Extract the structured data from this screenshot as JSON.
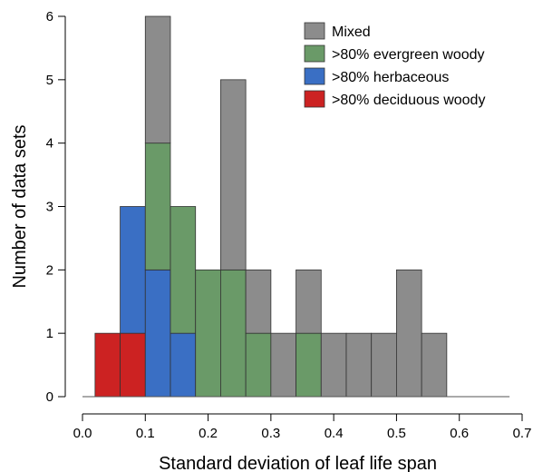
{
  "chart_data": {
    "type": "bar",
    "stacked": true,
    "xlabel": "Standard deviation of leaf life span",
    "ylabel": "Number of data sets",
    "xlim": [
      0.0,
      0.7
    ],
    "ylim": [
      0,
      6
    ],
    "x_ticks": [
      "0.0",
      "0.1",
      "0.2",
      "0.3",
      "0.4",
      "0.5",
      "0.6",
      "0.7"
    ],
    "y_ticks": [
      "0",
      "1",
      "2",
      "3",
      "4",
      "5",
      "6"
    ],
    "bin_width": 0.02,
    "bins": [
      0.04,
      0.08,
      0.12,
      0.16,
      0.2,
      0.24,
      0.28,
      0.32,
      0.36,
      0.4,
      0.44,
      0.48,
      0.52,
      0.56
    ],
    "legend_position": "top-right",
    "series": [
      {
        "name": ">80% deciduous woody",
        "color": "#cc2222",
        "values": [
          1,
          1,
          0,
          0,
          0,
          0,
          0,
          0,
          0,
          0,
          0,
          0,
          0,
          0
        ]
      },
      {
        "name": ">80% herbaceous",
        "color": "#3a6fc4",
        "values": [
          0,
          2,
          2,
          1,
          0,
          0,
          0,
          0,
          0,
          0,
          0,
          0,
          0,
          0
        ]
      },
      {
        "name": ">80% evergreen woody",
        "color": "#6a9a68",
        "values": [
          0,
          0,
          2,
          2,
          2,
          2,
          1,
          0,
          1,
          0,
          0,
          0,
          0,
          0
        ]
      },
      {
        "name": "Mixed",
        "color": "#8c8c8c",
        "values": [
          0,
          0,
          2,
          0,
          0,
          3,
          1,
          1,
          1,
          1,
          1,
          1,
          2,
          1
        ]
      }
    ],
    "legend_order": [
      "Mixed",
      ">80% evergreen woody",
      ">80% herbaceous",
      ">80% deciduous woody"
    ]
  }
}
